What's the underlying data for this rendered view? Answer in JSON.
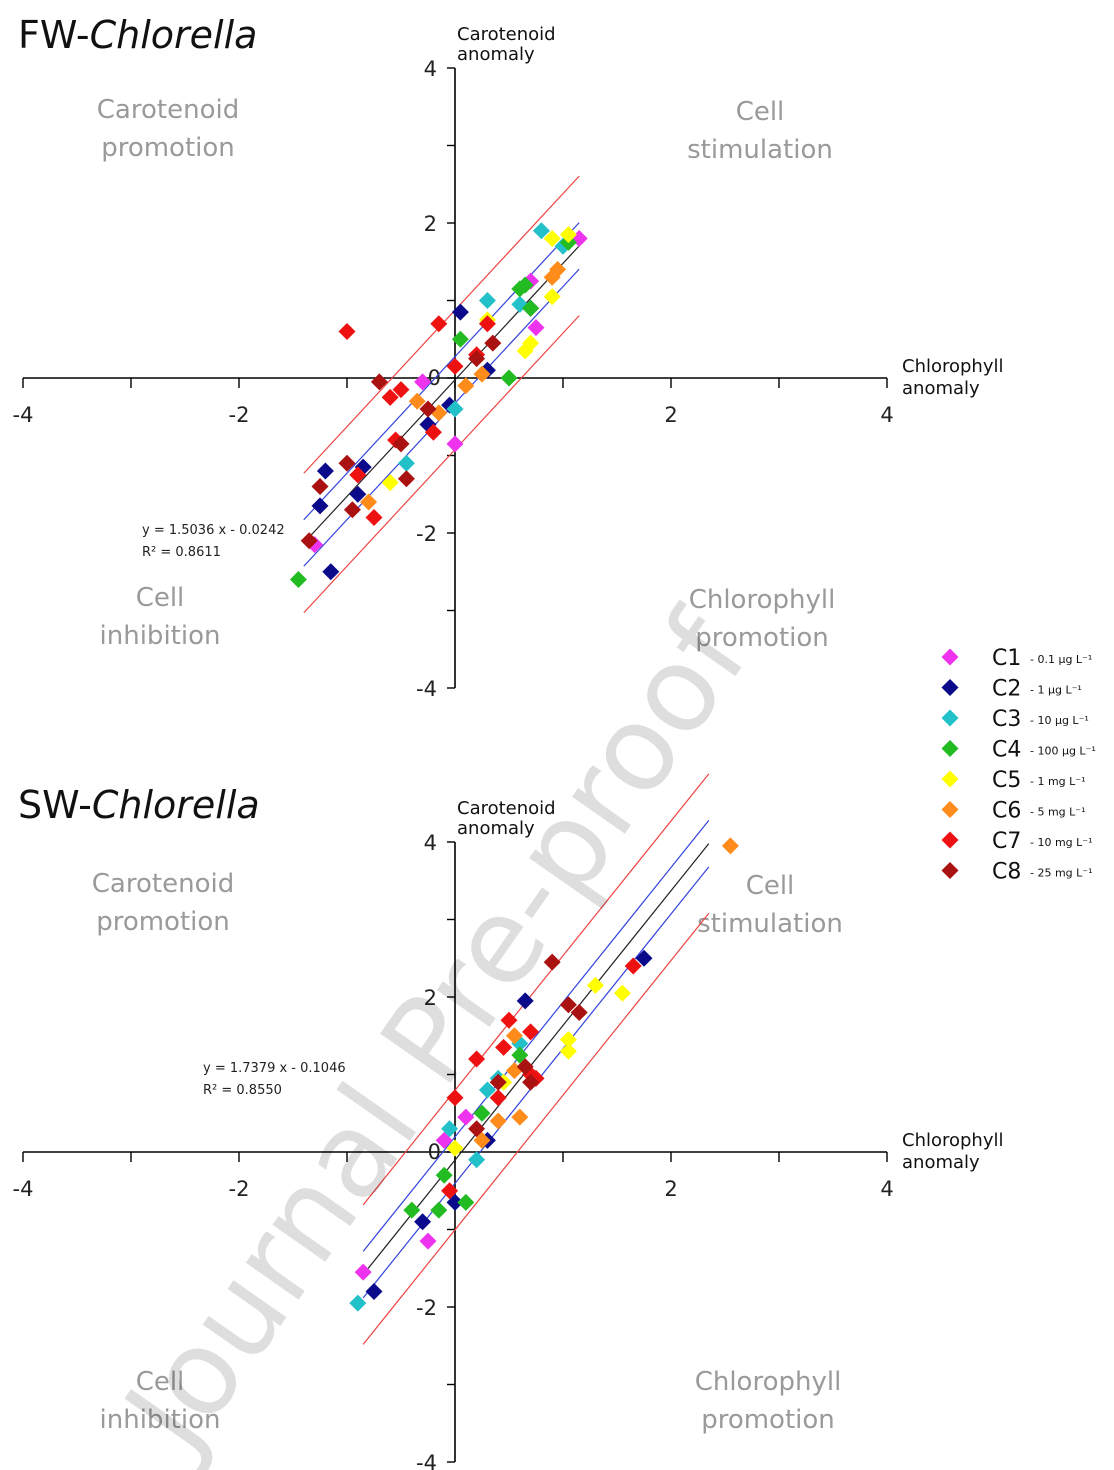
{
  "watermark": "Journal Pre-proof",
  "legend": [
    {
      "code": "C1",
      "conc": "- 0.1 μg L⁻¹",
      "color": "#ee33ee"
    },
    {
      "code": "C2",
      "conc": "- 1 μg L⁻¹",
      "color": "#0a0a8a"
    },
    {
      "code": "C3",
      "conc": "- 10 μg L⁻¹",
      "color": "#22c0c8"
    },
    {
      "code": "C4",
      "conc": "- 100 μg L⁻¹",
      "color": "#22bb22"
    },
    {
      "code": "C5",
      "conc": "- 1 mg L⁻¹",
      "color": "#ffff00"
    },
    {
      "code": "C6",
      "conc": "- 5 mg L⁻¹",
      "color": "#ff8c1a"
    },
    {
      "code": "C7",
      "conc": "- 10 mg L⁻¹",
      "color": "#ee1111"
    },
    {
      "code": "C8",
      "conc": "- 25 mg L⁻¹",
      "color": "#aa1111"
    }
  ],
  "chart_data": [
    {
      "type": "scatter",
      "title_prefix": "FW-",
      "title_italic": "Chlorella",
      "xlabel": [
        "Chlorophyll",
        "anomaly"
      ],
      "ylabel": [
        "Carotenoid",
        "anomaly"
      ],
      "xlim": [
        -4,
        4
      ],
      "ylim": [
        -4,
        4
      ],
      "xticks": [
        "-4",
        "-2",
        "2",
        "4"
      ],
      "yticks": [
        "4",
        "2",
        "-2",
        "-4"
      ],
      "origin_label": "0",
      "quadrants": {
        "top_left": [
          "Carotenoid",
          "promotion"
        ],
        "top_right": [
          "Cell",
          "stimulation"
        ],
        "bottom_left": [
          "Cell",
          "inhibition"
        ],
        "bottom_right": [
          "Chlorophyll",
          "promotion"
        ]
      },
      "regression": {
        "slope": 1.5036,
        "intercept": -0.0242,
        "x_range": [
          -1.4,
          1.15
        ],
        "equation": "y = 1.5036 x - 0.0242",
        "r2": "R² = 0.8611"
      },
      "series": [
        {
          "name": "C1",
          "points": [
            [
              -1.3,
              -2.15
            ],
            [
              0.0,
              -0.85
            ],
            [
              0.7,
              1.25
            ],
            [
              -0.3,
              -0.05
            ],
            [
              0.75,
              0.65
            ],
            [
              1.15,
              1.8
            ]
          ]
        },
        {
          "name": "C2",
          "points": [
            [
              -1.2,
              -1.2
            ],
            [
              -1.25,
              -1.65
            ],
            [
              -1.15,
              -2.5
            ],
            [
              -0.85,
              -1.15
            ],
            [
              -0.9,
              -1.5
            ],
            [
              0.05,
              0.85
            ],
            [
              -0.25,
              -0.6
            ],
            [
              0.3,
              0.1
            ],
            [
              -0.05,
              -0.35
            ],
            [
              0.7,
              0.9
            ]
          ]
        },
        {
          "name": "C3",
          "points": [
            [
              0.8,
              1.9
            ],
            [
              0.3,
              1.0
            ],
            [
              -0.45,
              -1.1
            ],
            [
              0.0,
              -0.4
            ],
            [
              0.6,
              0.95
            ],
            [
              1.0,
              1.7
            ]
          ]
        },
        {
          "name": "C4",
          "points": [
            [
              -1.45,
              -2.6
            ],
            [
              0.05,
              0.5
            ],
            [
              0.5,
              0.0
            ],
            [
              0.6,
              1.15
            ],
            [
              0.65,
              1.2
            ],
            [
              1.05,
              1.75
            ],
            [
              0.7,
              0.9
            ]
          ]
        },
        {
          "name": "C5",
          "points": [
            [
              0.9,
              1.8
            ],
            [
              1.05,
              1.85
            ],
            [
              0.9,
              1.05
            ],
            [
              -0.6,
              -1.35
            ],
            [
              0.7,
              0.45
            ],
            [
              0.3,
              0.75
            ],
            [
              0.65,
              0.35
            ]
          ]
        },
        {
          "name": "C6",
          "points": [
            [
              -0.8,
              -1.6
            ],
            [
              -0.35,
              -0.3
            ],
            [
              -0.15,
              -0.45
            ],
            [
              0.1,
              -0.1
            ],
            [
              0.9,
              1.3
            ],
            [
              0.95,
              1.4
            ],
            [
              0.25,
              0.05
            ]
          ]
        },
        {
          "name": "C7",
          "points": [
            [
              -1.0,
              0.6
            ],
            [
              -0.6,
              -0.25
            ],
            [
              -0.75,
              -1.8
            ],
            [
              -0.55,
              -0.8
            ],
            [
              -0.15,
              0.7
            ],
            [
              0.0,
              0.15
            ],
            [
              0.2,
              0.3
            ],
            [
              -0.2,
              -0.7
            ],
            [
              0.3,
              0.7
            ],
            [
              -0.9,
              -1.25
            ],
            [
              -0.5,
              -0.15
            ]
          ]
        },
        {
          "name": "C8",
          "points": [
            [
              -1.35,
              -2.1
            ],
            [
              -1.25,
              -1.4
            ],
            [
              -0.95,
              -1.7
            ],
            [
              -1.0,
              -1.1
            ],
            [
              -0.5,
              -0.85
            ],
            [
              -0.45,
              -1.3
            ],
            [
              -0.25,
              -0.4
            ],
            [
              0.35,
              0.45
            ],
            [
              0.2,
              0.25
            ],
            [
              -0.7,
              -0.05
            ]
          ]
        }
      ]
    },
    {
      "type": "scatter",
      "title_prefix": "SW-",
      "title_italic": "Chlorella",
      "xlabel": [
        "Chlorophyll",
        "anomaly"
      ],
      "ylabel": [
        "Carotenoid",
        "anomaly"
      ],
      "xlim": [
        -4,
        4
      ],
      "ylim": [
        -4,
        4
      ],
      "xticks": [
        "-4",
        "-2",
        "2",
        "4"
      ],
      "yticks": [
        "4",
        "2",
        "-2",
        "-4"
      ],
      "origin_label": "0",
      "quadrants": {
        "top_left": [
          "Carotenoid",
          "promotion"
        ],
        "top_right": [
          "Cell",
          "stimulation"
        ],
        "bottom_left": [
          "Cell",
          "inhibition"
        ],
        "bottom_right": [
          "Chlorophyll",
          "promotion"
        ]
      },
      "regression": {
        "slope": 1.7379,
        "intercept": -0.1046,
        "x_range": [
          -0.85,
          2.35
        ],
        "equation": "y = 1.7379 x - 0.1046",
        "r2": "R² = 0.8550"
      },
      "series": [
        {
          "name": "C1",
          "points": [
            [
              -0.85,
              -1.55
            ],
            [
              -0.25,
              -1.15
            ],
            [
              0.1,
              0.45
            ],
            [
              -0.1,
              0.15
            ]
          ]
        },
        {
          "name": "C2",
          "points": [
            [
              -0.75,
              -1.8
            ],
            [
              -0.3,
              -0.9
            ],
            [
              0.65,
              1.95
            ],
            [
              1.75,
              2.5
            ],
            [
              0.3,
              0.15
            ],
            [
              0.0,
              -0.65
            ]
          ]
        },
        {
          "name": "C3",
          "points": [
            [
              -0.9,
              -1.95
            ],
            [
              0.2,
              -0.1
            ],
            [
              -0.05,
              0.3
            ],
            [
              0.3,
              0.8
            ],
            [
              0.6,
              1.4
            ],
            [
              0.4,
              0.95
            ]
          ]
        },
        {
          "name": "C4",
          "points": [
            [
              -0.4,
              -0.75
            ],
            [
              -0.15,
              -0.75
            ],
            [
              0.1,
              -0.65
            ],
            [
              0.6,
              1.25
            ],
            [
              0.25,
              0.5
            ],
            [
              -0.1,
              -0.3
            ]
          ]
        },
        {
          "name": "C5",
          "points": [
            [
              1.3,
              2.15
            ],
            [
              1.55,
              2.05
            ],
            [
              1.05,
              1.3
            ],
            [
              1.05,
              1.45
            ],
            [
              0.0,
              0.05
            ],
            [
              0.45,
              0.9
            ]
          ]
        },
        {
          "name": "C6",
          "points": [
            [
              2.55,
              3.95
            ],
            [
              0.55,
              1.05
            ],
            [
              0.6,
              0.45
            ],
            [
              0.4,
              0.4
            ],
            [
              0.25,
              0.15
            ],
            [
              0.55,
              1.5
            ]
          ]
        },
        {
          "name": "C7",
          "points": [
            [
              0.0,
              0.7
            ],
            [
              0.2,
              1.2
            ],
            [
              0.5,
              1.7
            ],
            [
              0.7,
              1.55
            ],
            [
              1.65,
              2.4
            ],
            [
              0.7,
              1.0
            ],
            [
              0.45,
              1.35
            ],
            [
              -0.05,
              -0.5
            ],
            [
              0.4,
              0.7
            ],
            [
              0.75,
              0.95
            ]
          ]
        },
        {
          "name": "C8",
          "points": [
            [
              0.9,
              2.45
            ],
            [
              1.05,
              1.9
            ],
            [
              1.15,
              1.8
            ],
            [
              0.65,
              1.1
            ],
            [
              0.7,
              0.9
            ],
            [
              0.4,
              0.9
            ],
            [
              0.2,
              0.3
            ]
          ]
        }
      ]
    }
  ]
}
